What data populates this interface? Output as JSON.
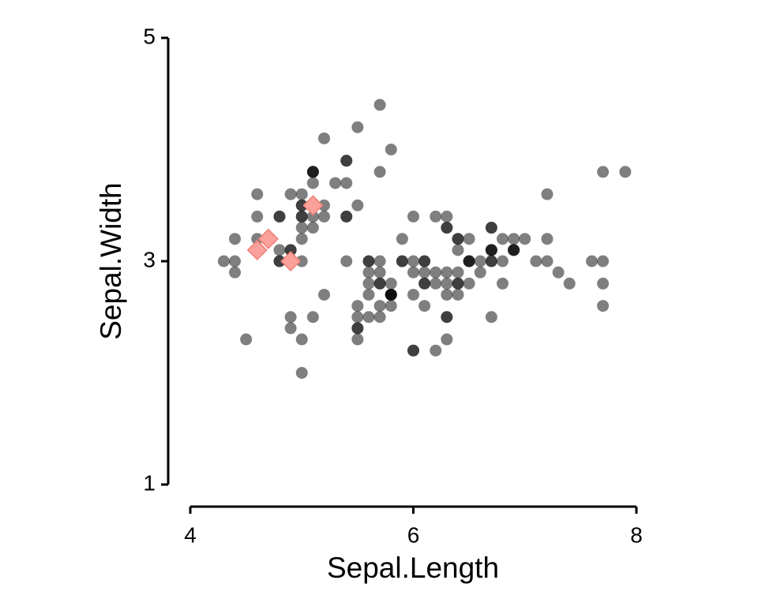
{
  "chart_data": {
    "type": "scatter",
    "xlabel": "Sepal.Length",
    "ylabel": "Sepal.Width",
    "xlim": [
      4,
      8
    ],
    "ylim": [
      1,
      5
    ],
    "xticks": [
      4,
      6,
      8
    ],
    "yticks": [
      1,
      3,
      5
    ],
    "series": [
      {
        "color": "#000000",
        "opacity": 0.5,
        "marker": "circle",
        "x": [
          5.1,
          4.9,
          4.7,
          4.6,
          5.0,
          5.4,
          4.6,
          5.0,
          4.4,
          4.9,
          5.4,
          4.8,
          4.8,
          4.3,
          5.8,
          5.7,
          5.4,
          5.1,
          5.7,
          5.1,
          5.4,
          5.1,
          4.6,
          5.1,
          4.8,
          5.0,
          5.0,
          5.2,
          5.2,
          4.7,
          4.8,
          5.4,
          5.2,
          5.5,
          4.9,
          5.0,
          5.5,
          4.9,
          4.4,
          5.1,
          5.0,
          4.5,
          4.4,
          5.0,
          5.1,
          4.8,
          5.1,
          4.6,
          5.3,
          5.0,
          7.0,
          6.4,
          6.9,
          5.5,
          6.5,
          5.7,
          6.3,
          4.9,
          6.6,
          5.2,
          5.0,
          5.9,
          6.0,
          6.1,
          5.6,
          6.7,
          5.6,
          5.8,
          6.2,
          5.6,
          5.9,
          6.1,
          6.3,
          6.1,
          6.4,
          6.6,
          6.8,
          6.7,
          6.0,
          5.7,
          5.5,
          5.5,
          5.8,
          6.0,
          5.4,
          6.0,
          6.7,
          6.3,
          5.6,
          5.5,
          5.5,
          6.1,
          5.8,
          5.0,
          5.6,
          5.7,
          5.7,
          6.2,
          5.1,
          5.7,
          6.3,
          5.8,
          7.1,
          6.3,
          6.5,
          7.6,
          4.9,
          7.3,
          6.7,
          7.2,
          6.5,
          6.4,
          6.8,
          5.7,
          5.8,
          6.4,
          6.5,
          7.7,
          7.7,
          6.0,
          6.9,
          5.6,
          7.7,
          6.3,
          6.7,
          7.2,
          6.2,
          6.1,
          6.4,
          7.2,
          7.4,
          7.9,
          6.4,
          6.3,
          6.1,
          7.7,
          6.3,
          6.4,
          6.0,
          6.9,
          6.7,
          6.9,
          5.8,
          6.8,
          6.7,
          6.7,
          6.3,
          6.5,
          6.2,
          5.9
        ],
        "values": [
          3.5,
          3.0,
          3.2,
          3.1,
          3.6,
          3.9,
          3.4,
          3.4,
          2.9,
          3.1,
          3.7,
          3.4,
          3.0,
          3.0,
          4.0,
          4.4,
          3.9,
          3.5,
          3.8,
          3.8,
          3.4,
          3.7,
          3.6,
          3.3,
          3.4,
          3.0,
          3.4,
          3.5,
          3.4,
          3.2,
          3.1,
          3.4,
          4.1,
          4.2,
          3.1,
          3.2,
          3.5,
          3.6,
          3.0,
          3.4,
          3.5,
          2.3,
          3.2,
          3.5,
          3.8,
          3.0,
          3.8,
          3.2,
          3.7,
          3.3,
          3.2,
          3.2,
          3.1,
          2.3,
          2.8,
          2.8,
          3.3,
          2.4,
          2.9,
          2.7,
          2.0,
          3.0,
          2.2,
          2.9,
          2.9,
          3.1,
          3.0,
          2.7,
          2.2,
          2.5,
          3.2,
          2.8,
          2.5,
          2.8,
          2.9,
          3.0,
          2.8,
          3.0,
          2.9,
          2.6,
          2.4,
          2.4,
          2.7,
          2.7,
          3.0,
          3.4,
          3.1,
          2.3,
          3.0,
          2.5,
          2.6,
          3.0,
          2.6,
          2.3,
          2.7,
          3.0,
          2.9,
          2.9,
          2.5,
          2.8,
          3.3,
          2.7,
          3.0,
          2.9,
          3.0,
          3.0,
          2.5,
          2.9,
          2.5,
          3.6,
          3.2,
          2.7,
          3.0,
          2.5,
          2.8,
          3.2,
          3.0,
          3.8,
          2.6,
          2.2,
          3.2,
          2.8,
          2.8,
          2.7,
          3.3,
          3.2,
          2.8,
          3.0,
          2.8,
          3.0,
          2.8,
          3.8,
          2.8,
          2.8,
          2.6,
          3.0,
          3.4,
          3.1,
          3.0,
          3.1,
          3.1,
          3.1,
          2.7,
          3.2,
          3.3,
          3.0,
          2.5,
          3.0,
          3.4,
          3.0
        ]
      },
      {
        "color": "#f9a19a",
        "stroke": "#f07f75",
        "marker": "diamond",
        "x": [
          5.1,
          4.9,
          4.7,
          4.6
        ],
        "values": [
          3.5,
          3.0,
          3.2,
          3.1
        ]
      }
    ]
  }
}
